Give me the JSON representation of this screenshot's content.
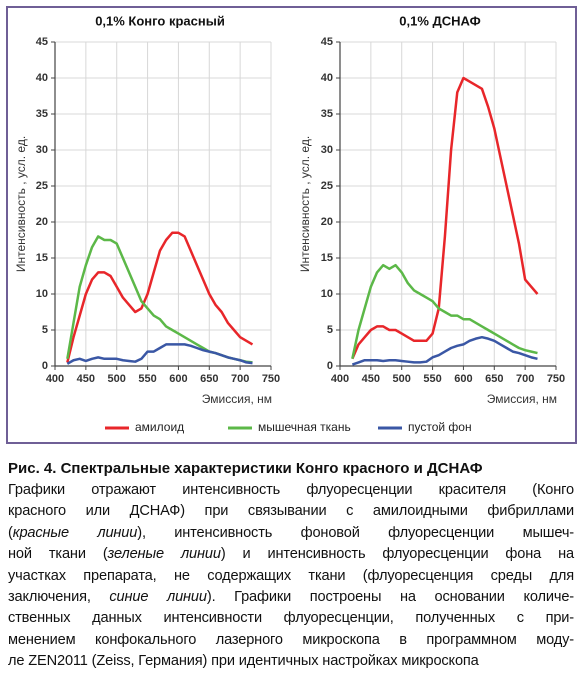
{
  "chart_data": [
    {
      "type": "line",
      "title": "0,1% Конго красный",
      "xlabel": "Эмиссия, нм",
      "ylabel": "Интенсивность , усл. ед.",
      "x": [
        420,
        430,
        440,
        450,
        460,
        470,
        480,
        490,
        500,
        510,
        520,
        530,
        540,
        550,
        560,
        570,
        580,
        590,
        600,
        610,
        620,
        630,
        640,
        650,
        660,
        670,
        680,
        690,
        700,
        710,
        720
      ],
      "series": [
        {
          "name": "амилоид",
          "color": "#e8262a",
          "values": [
            0.5,
            4,
            7,
            10,
            12,
            13,
            13,
            12.5,
            11,
            9.5,
            8.5,
            7.5,
            8,
            10,
            13,
            16,
            17.5,
            18.5,
            18.5,
            18,
            16,
            14,
            12,
            10,
            8.5,
            7.5,
            6,
            5,
            4,
            3.5,
            3
          ]
        },
        {
          "name": "мышечная ткань",
          "color": "#5cb848",
          "values": [
            1,
            6,
            11,
            14,
            16.5,
            18,
            17.5,
            17.5,
            17,
            15,
            13,
            11,
            9,
            8,
            7,
            6.5,
            5.5,
            5,
            4.5,
            4,
            3.5,
            3,
            2.5,
            2,
            1.8,
            1.5,
            1.2,
            1,
            0.8,
            0.6,
            0.5
          ]
        },
        {
          "name": "пустой фон",
          "color": "#3a57a5",
          "values": [
            0.3,
            0.8,
            1,
            0.7,
            1,
            1.2,
            1,
            1,
            1,
            0.8,
            0.7,
            0.6,
            1,
            2,
            2,
            2.5,
            3,
            3,
            3,
            3,
            2.8,
            2.5,
            2.2,
            2,
            1.8,
            1.5,
            1.2,
            1,
            0.8,
            0.5,
            0.4
          ]
        }
      ],
      "xlim": [
        400,
        750
      ],
      "xticks": [
        400,
        450,
        500,
        550,
        600,
        650,
        700,
        750
      ],
      "ylim": [
        0,
        45
      ],
      "yticks": [
        0,
        5,
        10,
        15,
        20,
        25,
        30,
        35,
        40,
        45
      ],
      "grid": true,
      "legend": "bottom"
    },
    {
      "type": "line",
      "title": "0,1% ДСНАФ",
      "xlabel": "Эмиссия, нм",
      "ylabel": "Интенсивность , усл. ед.",
      "x": [
        420,
        430,
        440,
        450,
        460,
        470,
        480,
        490,
        500,
        510,
        520,
        530,
        540,
        550,
        560,
        570,
        580,
        590,
        600,
        610,
        620,
        630,
        640,
        650,
        660,
        670,
        680,
        690,
        700,
        710,
        720
      ],
      "series": [
        {
          "color": "#e8262a",
          "values": [
            1,
            3,
            4,
            5,
            5.5,
            5.5,
            5,
            5,
            4.5,
            4,
            3.5,
            3.5,
            3.5,
            4.5,
            8,
            18,
            30,
            38,
            40,
            39.5,
            39,
            38.5,
            36,
            33,
            29,
            25,
            21,
            17,
            12,
            11,
            10
          ]
        },
        {
          "color": "#5cb848",
          "values": [
            1,
            5,
            8,
            11,
            13,
            14,
            13.5,
            14,
            13,
            11.5,
            10.5,
            10,
            9.5,
            9,
            8,
            7.5,
            7,
            7,
            6.5,
            6.5,
            6,
            5.5,
            5,
            4.5,
            4,
            3.5,
            3,
            2.5,
            2.2,
            2,
            1.8
          ]
        },
        {
          "color": "#3a57a5",
          "values": [
            0.2,
            0.5,
            0.8,
            0.8,
            0.8,
            0.7,
            0.8,
            0.8,
            0.7,
            0.6,
            0.5,
            0.5,
            0.6,
            1.2,
            1.5,
            2,
            2.5,
            2.8,
            3,
            3.5,
            3.8,
            4,
            3.8,
            3.5,
            3,
            2.5,
            2,
            1.8,
            1.5,
            1.2,
            1
          ]
        }
      ],
      "xlim": [
        400,
        750
      ],
      "xticks": [
        400,
        450,
        500,
        550,
        600,
        650,
        700,
        750
      ],
      "ylim": [
        0,
        45
      ],
      "yticks": [
        0,
        5,
        10,
        15,
        20,
        25,
        30,
        35,
        40,
        45
      ],
      "grid": true
    }
  ],
  "caption": {
    "title": "Рис. 4. Спектральные характеристики Конго красного и ДСНАФ",
    "lines": [
      [
        {
          "text": "Графики отражают интенсивность флуоресценции красителя (Конго",
          "italic": false
        }
      ],
      [
        {
          "text": "красного или ДСНАФ) при связывании с амилоидными фибриллами",
          "italic": false
        }
      ],
      [
        {
          "text": "(",
          "italic": false
        },
        {
          "text": "красные линии",
          "italic": true
        },
        {
          "text": "), интенсивность фоновой флуоресценции мышеч-",
          "italic": false
        }
      ],
      [
        {
          "text": "ной ткани (",
          "italic": false
        },
        {
          "text": "зеленые линии",
          "italic": true
        },
        {
          "text": ") и интенсивность флуоресценции фона на",
          "italic": false
        }
      ],
      [
        {
          "text": "участках препарата, не содержащих ткани (флуоресценция среды для",
          "italic": false
        }
      ],
      [
        {
          "text": "заключения, ",
          "italic": false
        },
        {
          "text": "синие линии",
          "italic": true
        },
        {
          "text": "). Графики построены на основании количе-",
          "italic": false
        }
      ],
      [
        {
          "text": "ственных данных интенсивности флуоресценции, полученных с при-",
          "italic": false
        }
      ],
      [
        {
          "text": "менением конфокального лазерного микроскопа в программном моду-",
          "italic": false
        }
      ],
      [
        {
          "text": "ле ZEN2011 (Zeiss, Германия) при идентичных настройках микроскопа",
          "italic": false
        }
      ]
    ]
  }
}
